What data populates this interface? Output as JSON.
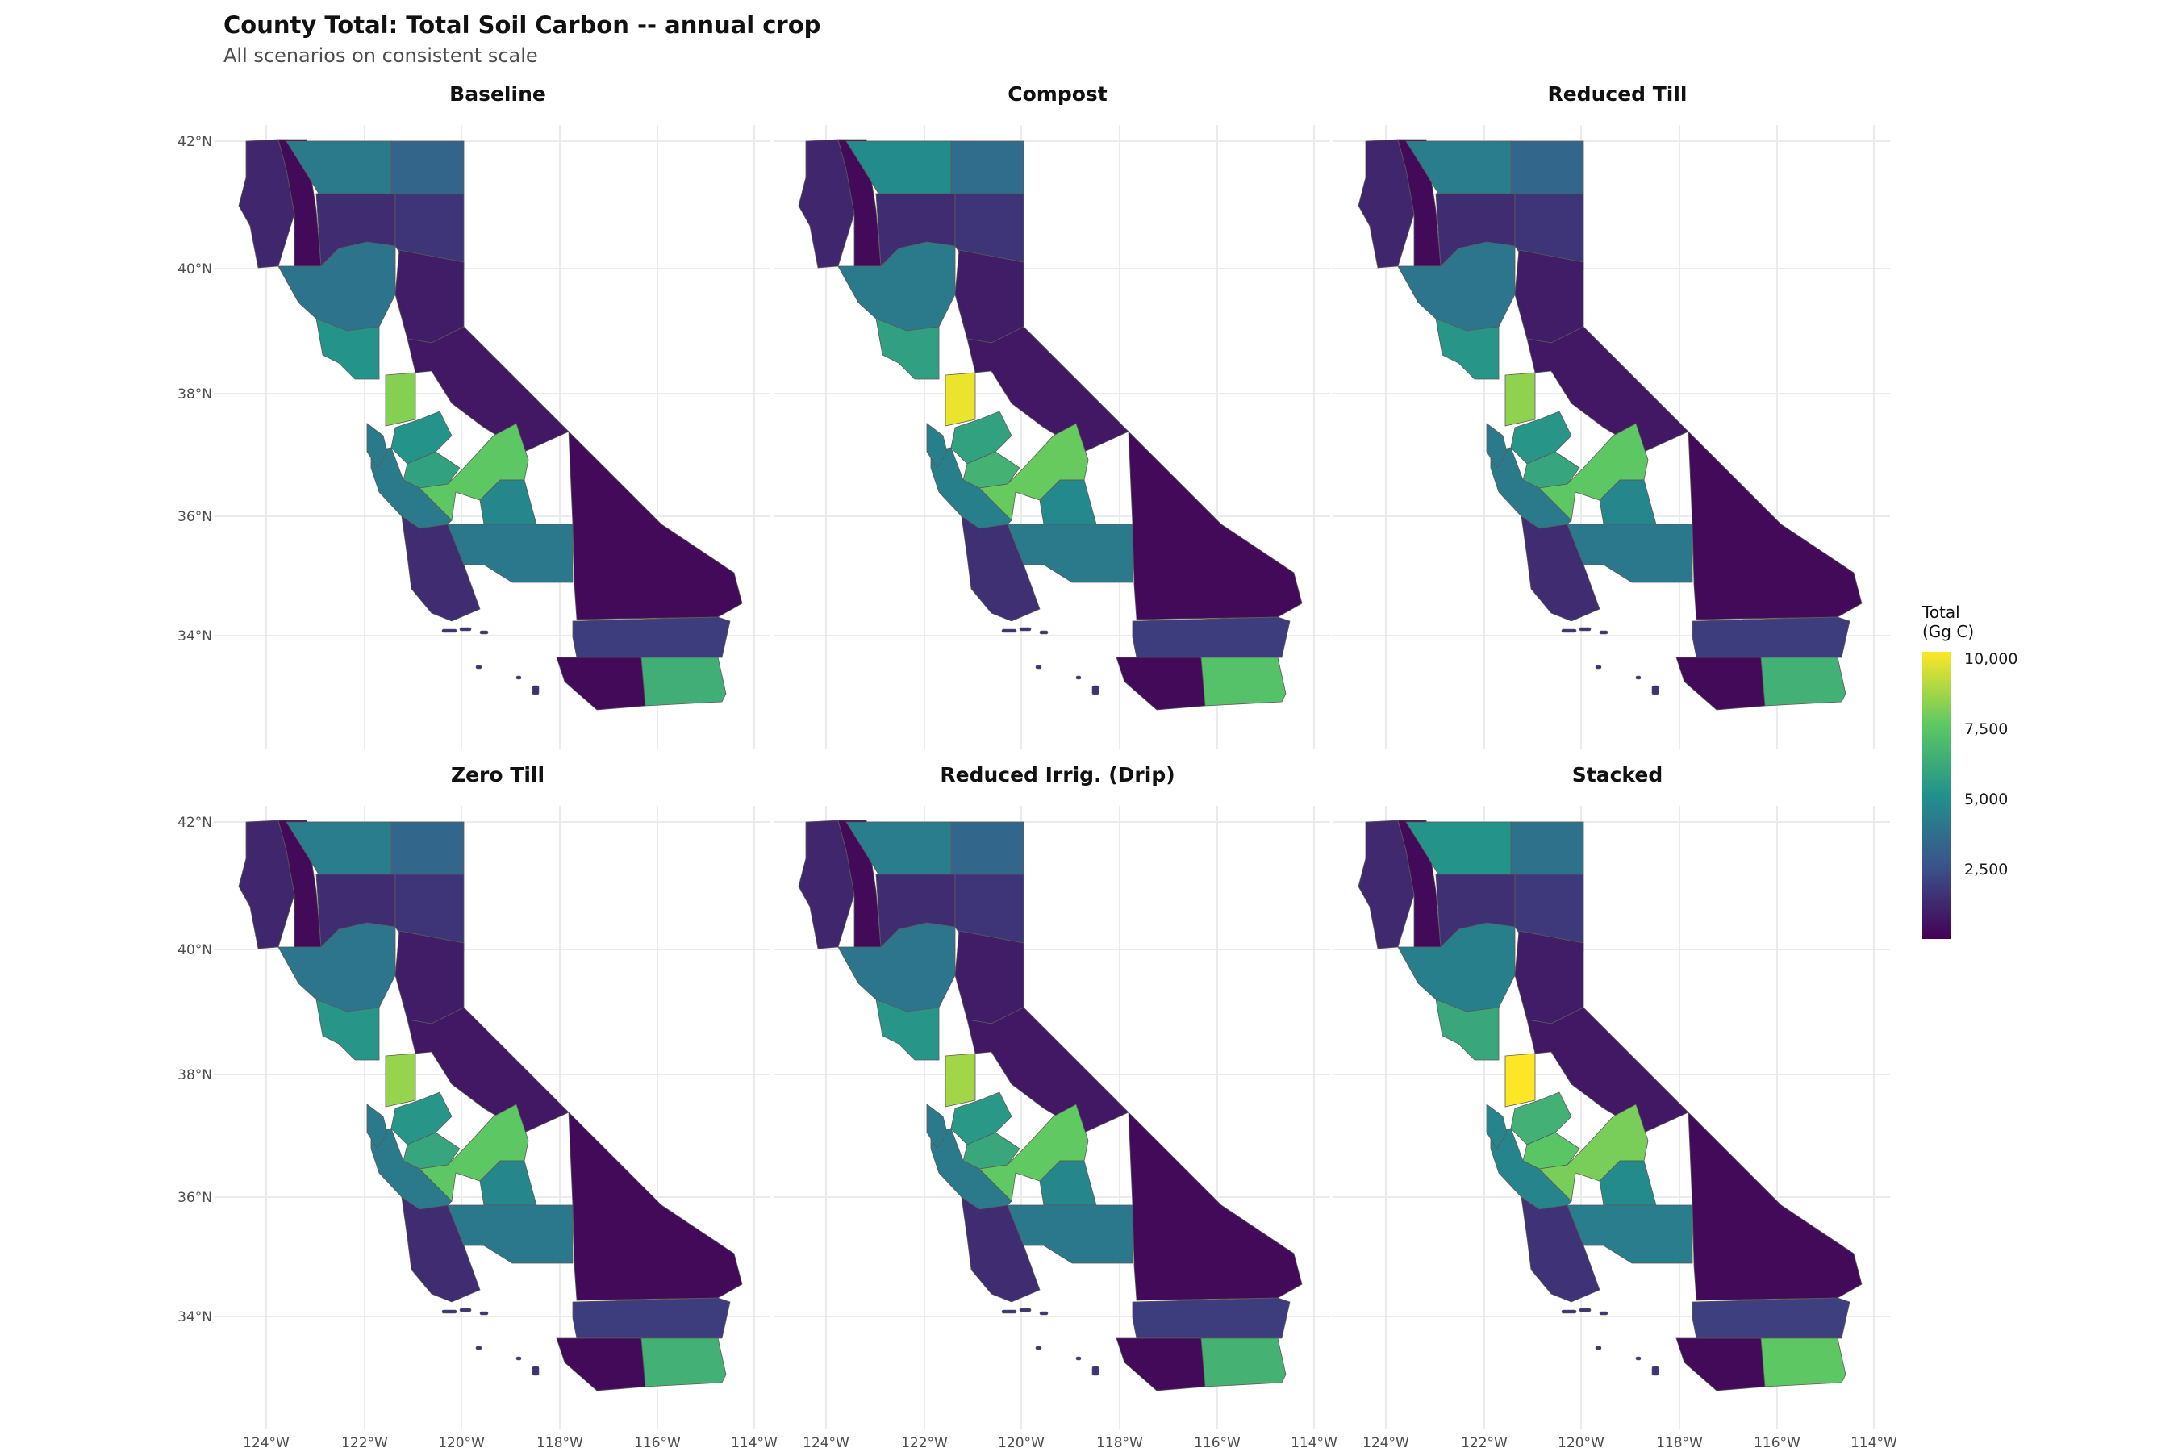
{
  "title": "County Total: Total Soil Carbon -- annual crop",
  "subtitle": "All scenarios on consistent scale",
  "lat_labels": [
    "42°N",
    "40°N",
    "38°N",
    "36°N",
    "34°N"
  ],
  "lon_labels": [
    "124°W",
    "122°W",
    "120°W",
    "118°W",
    "116°W",
    "114°W"
  ],
  "legend": {
    "title_line1": "Total",
    "title_line2": "(Gg C)",
    "ticks": [
      "10,000",
      "7,500",
      "5,000",
      "2,500"
    ],
    "tick_values": [
      10000,
      7500,
      5000,
      2500
    ],
    "range": [
      0,
      10500
    ],
    "palette": [
      "#440154",
      "#3b528b",
      "#21918c",
      "#5ec962",
      "#fde725"
    ]
  },
  "colors": {
    "grid": "#ebebeb",
    "boundary": "#5a5a5a",
    "background": "#ffffff"
  },
  "panels": [
    {
      "name": "Baseline",
      "regions": {
        "north_coast": 1200,
        "far_north": 300,
        "shasta": 1400,
        "siskiyou": 4300,
        "modoc": 3400,
        "lassen": 1700,
        "sierra_north": 900,
        "sacramento": 4000,
        "delta": 5400,
        "san_joaquin": 8500,
        "stanislaus": 5400,
        "merced": 6000,
        "fresno": 7800,
        "tulare": 4800,
        "kern": 4200,
        "central_coast": 4300,
        "south_coast": 1400,
        "eastern_sierra": 700,
        "san_bernardino": 300,
        "riverside": 1900,
        "san_diego": 300,
        "imperial": 6600,
        "islands": 1600
      }
    },
    {
      "name": "Compost",
      "regions": {
        "north_coast": 1200,
        "far_north": 300,
        "shasta": 1400,
        "siskiyou": 5000,
        "modoc": 3700,
        "lassen": 1700,
        "sierra_north": 900,
        "sacramento": 4300,
        "delta": 5900,
        "san_joaquin": 10200,
        "stanislaus": 6000,
        "merced": 6800,
        "fresno": 8000,
        "tulare": 4900,
        "kern": 4300,
        "central_coast": 4500,
        "south_coast": 1500,
        "eastern_sierra": 700,
        "san_bernardino": 300,
        "riverside": 1900,
        "san_diego": 300,
        "imperial": 7500,
        "islands": 1600
      }
    },
    {
      "name": "Reduced Till",
      "regions": {
        "north_coast": 1200,
        "far_north": 300,
        "shasta": 1400,
        "siskiyou": 4400,
        "modoc": 3500,
        "lassen": 1700,
        "sierra_north": 900,
        "sacramento": 4100,
        "delta": 5500,
        "san_joaquin": 8700,
        "stanislaus": 5500,
        "merced": 6200,
        "fresno": 7800,
        "tulare": 4800,
        "kern": 4200,
        "central_coast": 4300,
        "south_coast": 1400,
        "eastern_sierra": 700,
        "san_bernardino": 300,
        "riverside": 1900,
        "san_diego": 300,
        "imperial": 6700,
        "islands": 1600
      }
    },
    {
      "name": "Zero Till",
      "regions": {
        "north_coast": 1200,
        "far_north": 300,
        "shasta": 1400,
        "siskiyou": 4400,
        "modoc": 3500,
        "lassen": 1700,
        "sierra_north": 900,
        "sacramento": 4100,
        "delta": 5500,
        "san_joaquin": 8800,
        "stanislaus": 5500,
        "merced": 6200,
        "fresno": 7800,
        "tulare": 4800,
        "kern": 4200,
        "central_coast": 4300,
        "south_coast": 1400,
        "eastern_sierra": 700,
        "san_bernardino": 300,
        "riverside": 1900,
        "san_diego": 300,
        "imperial": 6700,
        "islands": 1600
      }
    },
    {
      "name": "Reduced Irrig. (Drip)",
      "regions": {
        "north_coast": 1200,
        "far_north": 300,
        "shasta": 1400,
        "siskiyou": 4400,
        "modoc": 3500,
        "lassen": 1700,
        "sierra_north": 900,
        "sacramento": 4100,
        "delta": 5500,
        "san_joaquin": 9000,
        "stanislaus": 5600,
        "merced": 6300,
        "fresno": 7900,
        "tulare": 4800,
        "kern": 4200,
        "central_coast": 4300,
        "south_coast": 1400,
        "eastern_sierra": 700,
        "san_bernardino": 300,
        "riverside": 1900,
        "san_diego": 300,
        "imperial": 6800,
        "islands": 1600
      }
    },
    {
      "name": "Stacked",
      "regions": {
        "north_coast": 1300,
        "far_north": 300,
        "shasta": 1500,
        "siskiyou": 5400,
        "modoc": 3900,
        "lassen": 1800,
        "sierra_north": 900,
        "sacramento": 4500,
        "delta": 6300,
        "san_joaquin": 10500,
        "stanislaus": 6700,
        "merced": 7700,
        "fresno": 8300,
        "tulare": 5000,
        "kern": 4400,
        "central_coast": 4700,
        "south_coast": 1600,
        "eastern_sierra": 700,
        "san_bernardino": 300,
        "riverside": 2000,
        "san_diego": 300,
        "imperial": 7800,
        "islands": 1600
      }
    }
  ]
}
